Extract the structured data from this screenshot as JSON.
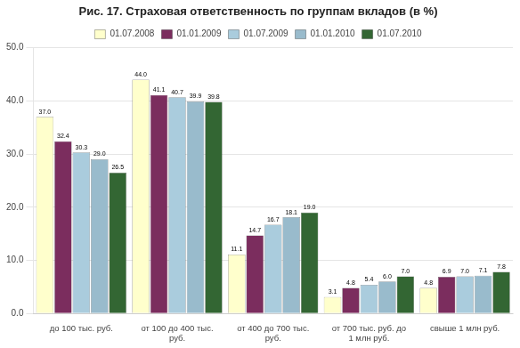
{
  "chart_data": {
    "type": "bar",
    "title": "Рис. 17. Страховая ответственность по группам вкладов (в %)",
    "categories": [
      "до 100 тыс. руб.",
      "от 100 до 400 тыс.\nруб.",
      "от 400 до 700 тыс.\nруб.",
      "от 700 тыс. руб. до\n1 млн руб.",
      "свыше 1 млн руб."
    ],
    "series": [
      {
        "name": "01.07.2008",
        "color": "#FFFFCC",
        "values": [
          37.0,
          44.0,
          11.1,
          3.1,
          4.8
        ],
        "value_labels": [
          "37.0",
          "44.0",
          "11.1",
          "3.1",
          "4.8"
        ]
      },
      {
        "name": "01.01.2009",
        "color": "#7B2D5E",
        "values": [
          32.4,
          41.1,
          14.7,
          4.8,
          6.9
        ],
        "value_labels": [
          "32.4",
          "41.1",
          "14.7",
          "4.8",
          "6.9"
        ]
      },
      {
        "name": "01.07.2009",
        "color": "#AACCDD",
        "values": [
          30.3,
          40.7,
          16.7,
          5.4,
          7.0
        ],
        "value_labels": [
          "30.3",
          "40.7",
          "16.7",
          "5.4",
          "7.0"
        ]
      },
      {
        "name": "01.01.2010",
        "color": "#99BBCC",
        "values": [
          29.0,
          39.9,
          18.1,
          6.0,
          7.1
        ],
        "value_labels": [
          "29.0",
          "39.9",
          "18.1",
          "6.0",
          "7.1"
        ]
      },
      {
        "name": "01.07.2010",
        "color": "#336633",
        "values": [
          26.5,
          39.8,
          19.0,
          7.0,
          7.8
        ],
        "value_labels": [
          "26.5",
          "39.8",
          "19.0",
          "7.0",
          "7.8"
        ]
      }
    ],
    "ylim": [
      0,
      50
    ],
    "yticks": [
      {
        "value": 0,
        "label": "0.0"
      },
      {
        "value": 10,
        "label": "10.0"
      },
      {
        "value": 20,
        "label": "20.0"
      },
      {
        "value": 30,
        "label": "30.0"
      },
      {
        "value": 40,
        "label": "40.0"
      },
      {
        "value": 50,
        "label": "50.0"
      }
    ],
    "grid": true,
    "legend": "top",
    "data_labels": true
  }
}
